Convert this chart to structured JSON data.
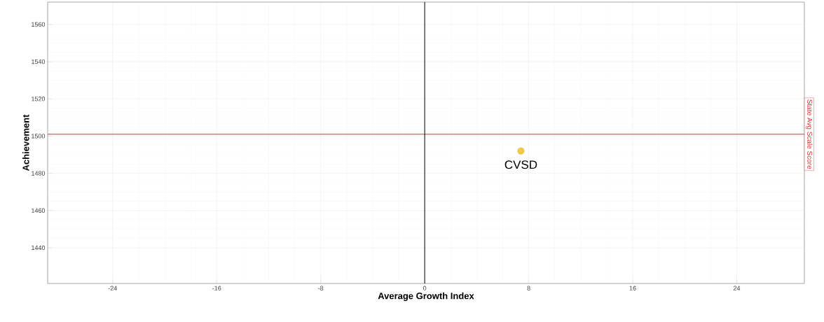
{
  "chart_data": {
    "type": "scatter",
    "xlabel": "Average Growth Index",
    "ylabel": "Achievement",
    "xlim": [
      -29,
      29.2
    ],
    "ylim": [
      1420.8,
      1572
    ],
    "xticks": [
      -24,
      -16,
      -8,
      0,
      8,
      16,
      24
    ],
    "yticks": [
      1440,
      1460,
      1480,
      1500,
      1520,
      1540,
      1560
    ],
    "grid": true,
    "series": [
      {
        "name": "CVSD",
        "color": "#f5c842",
        "x": [
          7.4
        ],
        "values": [
          1492
        ]
      }
    ],
    "ref_lines": [
      {
        "axis": "y",
        "value": 1501,
        "label": "State Avg Scale Score",
        "color": "#e03030"
      },
      {
        "axis": "x",
        "value": 0,
        "color": "#000000"
      }
    ]
  }
}
